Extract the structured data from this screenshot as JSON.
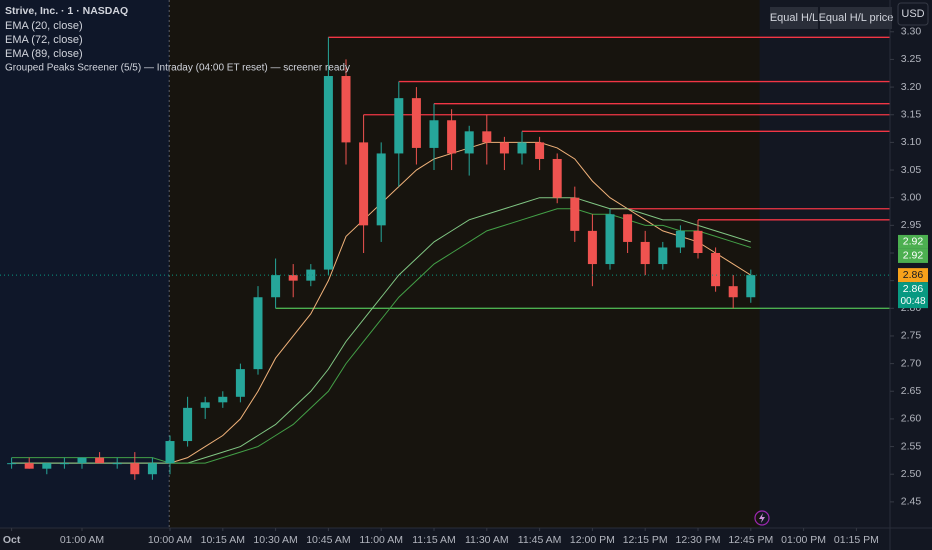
{
  "chart_data": {
    "type": "candlestick",
    "title": "Strive, Inc. · 1 · NASDAQ",
    "indicators": [
      "EMA (20, close)",
      "EMA (72, close)",
      "EMA (89, close)",
      "Grouped Peaks Screener (5/5) — Intraday (04:00 ET reset) — screener ready"
    ],
    "buttons": [
      "Equal H/L",
      "Equal H/L price"
    ],
    "currency": "USD",
    "up_color": "#26a69a",
    "down_color": "#ef5350",
    "candles": {
      "open": [
        2.52,
        2.52,
        2.51,
        2.52,
        2.52,
        2.53,
        2.52,
        2.52,
        2.5,
        2.52,
        2.56,
        2.62,
        2.63,
        2.64,
        2.69,
        2.82,
        2.86,
        2.85,
        2.87,
        3.22,
        3.1,
        2.95,
        3.08,
        3.18,
        3.09,
        3.14,
        3.08,
        3.12,
        3.1,
        3.08,
        3.1,
        3.07,
        3.0,
        2.94,
        2.88,
        2.97,
        2.92,
        2.88,
        2.91,
        2.94,
        2.9,
        2.84,
        2.82
      ],
      "high": [
        2.53,
        2.53,
        2.52,
        2.53,
        2.53,
        2.54,
        2.53,
        2.54,
        2.53,
        2.57,
        2.64,
        2.64,
        2.65,
        2.7,
        2.84,
        2.89,
        2.88,
        2.88,
        3.29,
        3.25,
        3.15,
        3.1,
        3.21,
        3.2,
        3.17,
        3.16,
        3.13,
        3.15,
        3.11,
        3.12,
        3.11,
        3.08,
        3.02,
        2.97,
        2.98,
        2.97,
        2.94,
        2.92,
        2.95,
        2.96,
        2.91,
        2.86,
        2.87
      ],
      "low": [
        2.51,
        2.51,
        2.5,
        2.51,
        2.51,
        2.52,
        2.51,
        2.49,
        2.49,
        2.5,
        2.55,
        2.6,
        2.62,
        2.63,
        2.68,
        2.8,
        2.82,
        2.84,
        2.86,
        3.06,
        2.9,
        2.92,
        3.02,
        3.06,
        3.05,
        3.05,
        3.04,
        3.06,
        3.05,
        3.06,
        3.05,
        2.99,
        2.92,
        2.84,
        2.87,
        2.9,
        2.86,
        2.87,
        2.9,
        2.89,
        2.83,
        2.8,
        2.81
      ],
      "close": [
        2.52,
        2.51,
        2.52,
        2.52,
        2.53,
        2.52,
        2.52,
        2.5,
        2.52,
        2.56,
        2.62,
        2.63,
        2.64,
        2.69,
        2.82,
        2.86,
        2.85,
        2.87,
        3.22,
        3.1,
        2.95,
        3.08,
        3.18,
        3.09,
        3.14,
        3.08,
        3.12,
        3.1,
        3.08,
        3.1,
        3.07,
        3.0,
        2.94,
        2.88,
        2.97,
        2.92,
        2.88,
        2.91,
        2.94,
        2.9,
        2.84,
        2.82,
        2.86
      ]
    },
    "series": [
      {
        "name": "EMA (20, close)",
        "color": "#f0b27a",
        "values": [
          2.52,
          2.52,
          2.52,
          2.52,
          2.52,
          2.52,
          2.52,
          2.52,
          2.52,
          2.52,
          2.53,
          2.55,
          2.57,
          2.6,
          2.65,
          2.71,
          2.75,
          2.79,
          2.85,
          2.93,
          2.96,
          2.99,
          3.02,
          3.05,
          3.07,
          3.08,
          3.09,
          3.1,
          3.1,
          3.1,
          3.1,
          3.09,
          3.07,
          3.03,
          3.0,
          2.98,
          2.96,
          2.94,
          2.93,
          2.92,
          2.9,
          2.88,
          2.86
        ]
      },
      {
        "name": "EMA (72, close)",
        "color": "#81c784",
        "values": [
          2.52,
          2.52,
          2.52,
          2.52,
          2.52,
          2.52,
          2.52,
          2.52,
          2.52,
          2.52,
          2.52,
          2.53,
          2.54,
          2.55,
          2.57,
          2.59,
          2.62,
          2.65,
          2.69,
          2.74,
          2.78,
          2.82,
          2.86,
          2.89,
          2.92,
          2.94,
          2.96,
          2.97,
          2.98,
          2.99,
          3.0,
          3.0,
          3.0,
          2.99,
          2.98,
          2.98,
          2.97,
          2.96,
          2.96,
          2.95,
          2.94,
          2.93,
          2.92
        ]
      },
      {
        "name": "EMA (89, close)",
        "color": "#43a047",
        "values": [
          2.53,
          2.53,
          2.53,
          2.53,
          2.53,
          2.53,
          2.53,
          2.53,
          2.53,
          2.52,
          2.52,
          2.52,
          2.53,
          2.54,
          2.55,
          2.57,
          2.59,
          2.62,
          2.65,
          2.7,
          2.74,
          2.78,
          2.82,
          2.85,
          2.88,
          2.9,
          2.92,
          2.94,
          2.95,
          2.96,
          2.97,
          2.98,
          2.98,
          2.97,
          2.97,
          2.96,
          2.95,
          2.95,
          2.94,
          2.94,
          2.93,
          2.92,
          2.91
        ]
      }
    ],
    "levels": [
      {
        "value": 3.29,
        "color": "#f23645"
      },
      {
        "value": 3.21,
        "color": "#f23645"
      },
      {
        "value": 3.17,
        "color": "#f23645"
      },
      {
        "value": 3.15,
        "color": "#f23645"
      },
      {
        "value": 3.12,
        "color": "#f23645"
      },
      {
        "value": 2.98,
        "color": "#f23645"
      },
      {
        "value": 2.96,
        "color": "#f23645"
      },
      {
        "value": 2.8,
        "color": "#4caf50"
      }
    ],
    "price_labels": [
      {
        "value": 2.92,
        "color": "#4caf50"
      },
      {
        "value": 2.92,
        "color": "#4caf50"
      },
      {
        "value": 2.86,
        "color": "#f7a21b"
      },
      {
        "value": 2.86,
        "color": "#089981",
        "countdown": "00:48"
      }
    ],
    "ylim": [
      2.41,
      3.39
    ],
    "yticks": [
      2.45,
      {
        "value": 2.5,
        "label": "2.50"
      },
      2.55,
      {
        "value": 2.6,
        "label": "2.60"
      },
      2.65,
      {
        "value": 2.7,
        "label": "2.70"
      },
      2.75,
      {
        "value": 2.8,
        "label": "2.80"
      },
      2.85,
      {
        "value": 2.9,
        "label": "2.90"
      },
      2.95,
      {
        "value": 3,
        "label": "3.00"
      },
      3.05,
      {
        "value": 3.1,
        "label": "3.10"
      },
      3.15,
      {
        "value": 3.2,
        "label": "3.20"
      },
      3.25,
      {
        "value": 3.3,
        "label": "3.30"
      }
    ],
    "xticks": [
      {
        "value": 0,
        "label": "Oct"
      },
      {
        "value": 4,
        "label": "01:00 AM"
      },
      {
        "value": 9,
        "label": "10:00 AM"
      },
      {
        "value": 12,
        "label": "10:15 AM"
      },
      {
        "value": 15,
        "label": "10:30 AM"
      },
      {
        "value": 18,
        "label": "10:45 AM"
      },
      {
        "value": 21,
        "label": "11:00 AM"
      },
      {
        "value": 24,
        "label": "11:15 AM"
      },
      {
        "value": 27,
        "label": "11:30 AM"
      },
      {
        "value": 30,
        "label": "11:45 AM"
      },
      {
        "value": 33,
        "label": "12:00 PM"
      },
      {
        "value": 36,
        "label": "12:15 PM"
      },
      {
        "value": 39,
        "label": "12:30 PM"
      },
      {
        "value": 42,
        "label": "12:45 PM"
      },
      {
        "value": 45,
        "label": "01:00 PM"
      },
      {
        "value": 48,
        "label": "01:15 PM"
      }
    ],
    "session_start": 9
  }
}
